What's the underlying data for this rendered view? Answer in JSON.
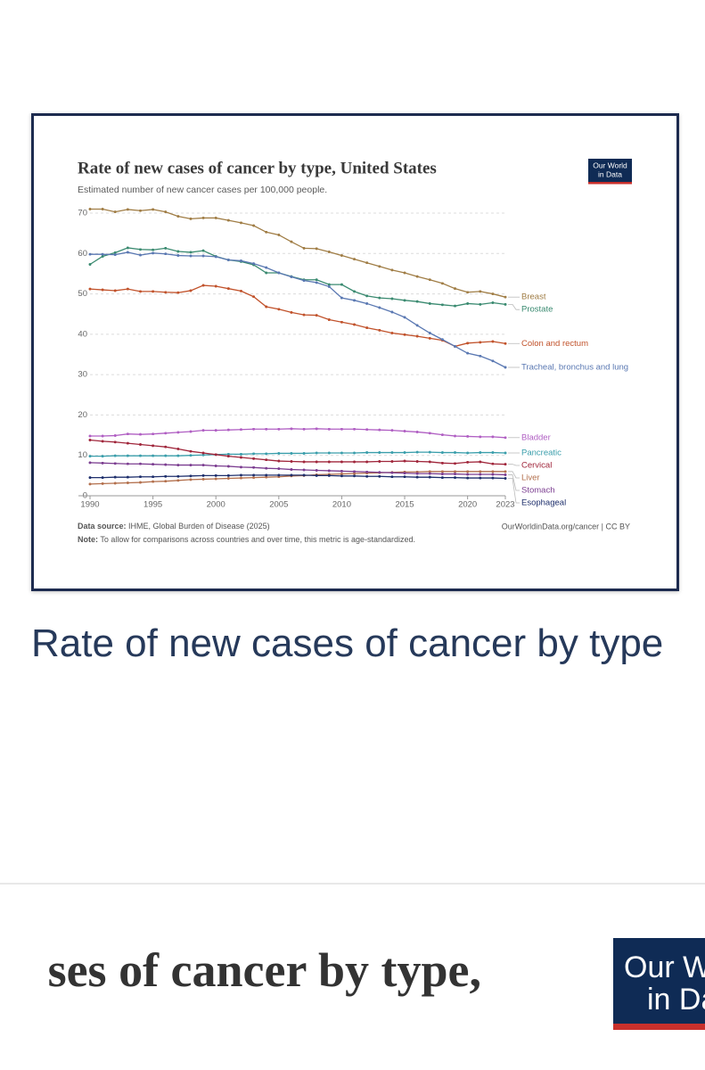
{
  "chart_data": {
    "type": "line",
    "title": "Rate of new cases of cancer by type, United States",
    "subtitle": "Estimated number of new cancer cases per 100,000 people.",
    "logo": [
      "Our World",
      "in Data"
    ],
    "source_label": "Data source:",
    "source": "IHME, Global Burden of Disease (2025)",
    "url": "OurWorldinData.org/cancer | CC BY",
    "note_label": "Note:",
    "note": "To allow for comparisons across countries and over time, this metric is age-standardized.",
    "x": [
      1990,
      1991,
      1992,
      1993,
      1994,
      1995,
      1996,
      1997,
      1998,
      1999,
      2000,
      2001,
      2002,
      2003,
      2004,
      2005,
      2006,
      2007,
      2008,
      2009,
      2010,
      2011,
      2012,
      2013,
      2014,
      2015,
      2016,
      2017,
      2018,
      2019,
      2020,
      2021,
      2022,
      2023
    ],
    "xlim": [
      1990,
      2023
    ],
    "xticks": [
      1990,
      1995,
      2000,
      2005,
      2010,
      2015,
      2020,
      2023
    ],
    "ylim": [
      0,
      70
    ],
    "yticks": [
      0,
      10,
      20,
      30,
      40,
      50,
      60,
      70
    ],
    "grid": true,
    "series": [
      {
        "name": "Breast",
        "color": "#a07d45",
        "values": [
          71.0,
          71.0,
          70.3,
          70.9,
          70.6,
          70.9,
          70.3,
          69.2,
          68.6,
          68.8,
          68.8,
          68.2,
          67.6,
          66.9,
          65.3,
          64.6,
          62.9,
          61.3,
          61.2,
          60.4,
          59.5,
          58.6,
          57.7,
          56.8,
          55.9,
          55.2,
          54.3,
          53.5,
          52.6,
          51.3,
          50.4,
          50.6,
          50.0,
          49.2
        ]
      },
      {
        "name": "Prostate",
        "color": "#3a8a70",
        "values": [
          57.3,
          59.3,
          60.2,
          61.4,
          61.0,
          60.9,
          61.3,
          60.5,
          60.3,
          60.7,
          59.3,
          58.4,
          58.0,
          57.2,
          55.2,
          55.2,
          54.3,
          53.5,
          53.5,
          52.3,
          52.3,
          50.6,
          49.5,
          49.0,
          48.8,
          48.4,
          48.1,
          47.6,
          47.3,
          47.0,
          47.6,
          47.4,
          47.8,
          47.4
        ]
      },
      {
        "name": "Colon and rectum",
        "color": "#c1522b",
        "values": [
          51.2,
          51.0,
          50.8,
          51.2,
          50.6,
          50.6,
          50.4,
          50.3,
          50.8,
          52.1,
          51.9,
          51.3,
          50.7,
          49.3,
          46.8,
          46.2,
          45.4,
          44.8,
          44.7,
          43.6,
          43.0,
          42.4,
          41.6,
          41.0,
          40.3,
          39.9,
          39.5,
          39.0,
          38.5,
          37.0,
          37.8,
          38.0,
          38.2,
          37.7
        ]
      },
      {
        "name": "Tracheal, bronchus and lung",
        "color": "#5a78b2",
        "values": [
          59.8,
          59.8,
          59.7,
          60.3,
          59.6,
          60.1,
          59.9,
          59.5,
          59.4,
          59.4,
          59.2,
          58.4,
          58.2,
          57.5,
          56.5,
          55.2,
          54.2,
          53.3,
          52.8,
          51.8,
          49.0,
          48.4,
          47.6,
          46.6,
          45.5,
          44.2,
          42.2,
          40.3,
          38.7,
          37.0,
          35.3,
          34.6,
          33.4,
          31.8
        ]
      },
      {
        "name": "Bladder",
        "color": "#b05fc3",
        "values": [
          14.8,
          14.8,
          14.9,
          15.3,
          15.2,
          15.3,
          15.5,
          15.7,
          15.9,
          16.2,
          16.2,
          16.3,
          16.4,
          16.5,
          16.5,
          16.5,
          16.6,
          16.5,
          16.6,
          16.5,
          16.5,
          16.5,
          16.4,
          16.3,
          16.2,
          16.0,
          15.8,
          15.5,
          15.1,
          14.8,
          14.7,
          14.6,
          14.6,
          14.4
        ]
      },
      {
        "name": "Pancreatic",
        "color": "#3a9eab",
        "values": [
          9.8,
          9.8,
          9.9,
          9.9,
          9.9,
          9.9,
          9.9,
          9.9,
          10.0,
          10.1,
          10.2,
          10.3,
          10.3,
          10.4,
          10.4,
          10.5,
          10.5,
          10.5,
          10.6,
          10.6,
          10.6,
          10.6,
          10.7,
          10.7,
          10.7,
          10.7,
          10.8,
          10.8,
          10.7,
          10.7,
          10.6,
          10.7,
          10.7,
          10.6
        ]
      },
      {
        "name": "Cervical",
        "color": "#a0263b",
        "values": [
          13.8,
          13.5,
          13.3,
          13.0,
          12.7,
          12.4,
          12.1,
          11.6,
          11.0,
          10.6,
          10.2,
          9.8,
          9.5,
          9.2,
          8.9,
          8.6,
          8.5,
          8.4,
          8.4,
          8.4,
          8.4,
          8.4,
          8.4,
          8.5,
          8.5,
          8.6,
          8.5,
          8.4,
          8.1,
          8.0,
          8.3,
          8.4,
          7.9,
          7.8
        ]
      },
      {
        "name": "Liver",
        "color": "#b3704d",
        "values": [
          2.9,
          3.0,
          3.1,
          3.2,
          3.3,
          3.5,
          3.6,
          3.8,
          4.0,
          4.1,
          4.2,
          4.3,
          4.4,
          4.5,
          4.6,
          4.7,
          4.9,
          5.0,
          5.2,
          5.3,
          5.4,
          5.5,
          5.6,
          5.7,
          5.8,
          5.9,
          5.9,
          6.0,
          6.0,
          6.0,
          6.0,
          6.0,
          6.0,
          6.0
        ]
      },
      {
        "name": "Stomach",
        "color": "#7b3d90",
        "values": [
          8.2,
          8.1,
          8.0,
          7.9,
          7.9,
          7.8,
          7.7,
          7.6,
          7.6,
          7.6,
          7.4,
          7.3,
          7.1,
          7.0,
          6.8,
          6.7,
          6.5,
          6.4,
          6.3,
          6.2,
          6.1,
          6.0,
          5.9,
          5.8,
          5.7,
          5.6,
          5.5,
          5.5,
          5.4,
          5.4,
          5.3,
          5.3,
          5.3,
          5.2
        ]
      },
      {
        "name": "Esophageal",
        "color": "#1e2f6c",
        "values": [
          4.5,
          4.5,
          4.6,
          4.6,
          4.7,
          4.7,
          4.8,
          4.8,
          4.9,
          5.0,
          5.0,
          5.0,
          5.1,
          5.1,
          5.1,
          5.1,
          5.1,
          5.1,
          5.0,
          5.0,
          4.9,
          4.9,
          4.8,
          4.8,
          4.7,
          4.7,
          4.6,
          4.6,
          4.5,
          4.5,
          4.4,
          4.4,
          4.4,
          4.3
        ]
      }
    ]
  },
  "page": {
    "heading": "Rate of new cases of cancer by type",
    "preview_title": "ses of cancer by type,",
    "preview_logo": [
      "Our W",
      "in Da"
    ]
  }
}
